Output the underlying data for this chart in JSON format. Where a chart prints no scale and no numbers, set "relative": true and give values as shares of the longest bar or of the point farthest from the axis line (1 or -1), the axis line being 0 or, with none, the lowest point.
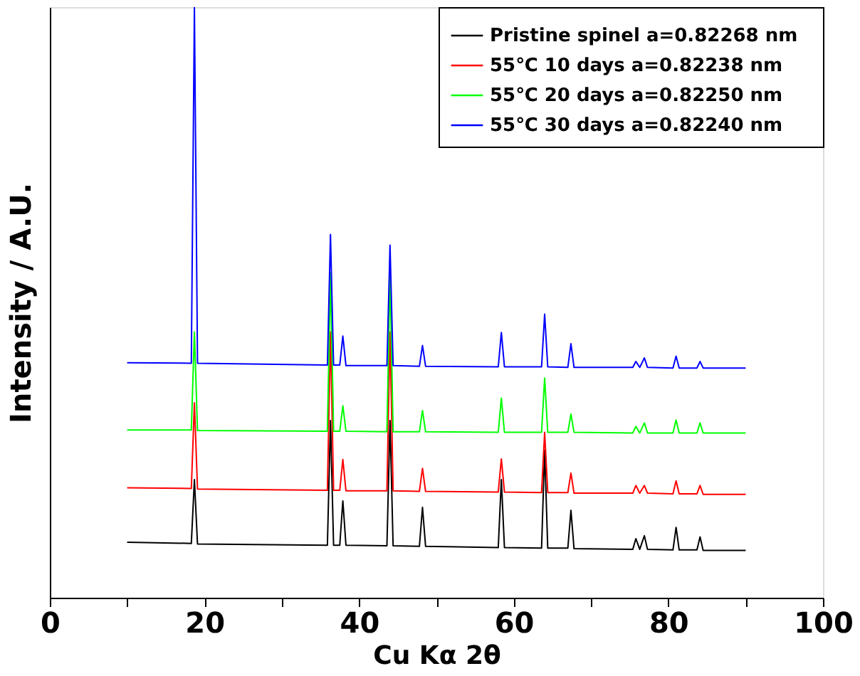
{
  "chart_data": {
    "type": "line",
    "relative": true,
    "xlabel": "Cu Kα  2θ",
    "ylabel": "Intensity / A.U.",
    "xlim": [
      0,
      100
    ],
    "xticks": [
      0,
      {
        "value": 10,
        "label": null
      },
      20,
      {
        "value": 30,
        "label": null
      },
      40,
      {
        "value": 50,
        "label": null
      },
      60,
      {
        "value": 70,
        "label": null
      },
      80,
      {
        "value": 90,
        "label": null
      },
      100
    ],
    "grid": false,
    "legend": "top right",
    "marker": "none",
    "line_style": "solid",
    "x": [
      10,
      18.3,
      18.7,
      19.1,
      35.9,
      36.3,
      36.7,
      37.5,
      37.9,
      38.3,
      43.6,
      44.0,
      44.4,
      47.8,
      48.2,
      48.6,
      58.0,
      58.4,
      58.8,
      63.6,
      64.0,
      64.4,
      67.0,
      67.4,
      67.8,
      75.4,
      75.8,
      76.3,
      76.9,
      77.3,
      80.6,
      81.0,
      81.4,
      83.7,
      84.1,
      84.5,
      90
    ],
    "series": [
      {
        "name": "Pristine spinel   a=0.82268 nm",
        "color": "#000000",
        "values": [
          0.094,
          0.092,
          0.2,
          0.091,
          0.089,
          0.3,
          0.089,
          0.089,
          0.164,
          0.089,
          0.088,
          0.3,
          0.088,
          0.087,
          0.153,
          0.087,
          0.085,
          0.2,
          0.085,
          0.084,
          0.25,
          0.084,
          0.084,
          0.148,
          0.083,
          0.082,
          0.1,
          0.082,
          0.105,
          0.082,
          0.081,
          0.119,
          0.081,
          0.081,
          0.103,
          0.08,
          0.08
        ]
      },
      {
        "name": "55℃   10 days   a=0.82238 nm",
        "color": "#ff0000",
        "values": [
          0.186,
          0.185,
          0.33,
          0.184,
          0.182,
          0.45,
          0.182,
          0.182,
          0.234,
          0.181,
          0.181,
          0.45,
          0.181,
          0.18,
          0.219,
          0.18,
          0.179,
          0.235,
          0.179,
          0.178,
          0.28,
          0.178,
          0.178,
          0.211,
          0.177,
          0.177,
          0.19,
          0.177,
          0.19,
          0.177,
          0.176,
          0.198,
          0.176,
          0.176,
          0.19,
          0.175,
          0.175
        ]
      },
      {
        "name": "55℃   20 days   a=0.82250 nm",
        "color": "#00ff00",
        "values": [
          0.284,
          0.284,
          0.45,
          0.283,
          0.282,
          0.55,
          0.282,
          0.282,
          0.325,
          0.282,
          0.281,
          0.55,
          0.281,
          0.281,
          0.317,
          0.281,
          0.28,
          0.338,
          0.28,
          0.28,
          0.372,
          0.28,
          0.28,
          0.311,
          0.28,
          0.279,
          0.29,
          0.279,
          0.296,
          0.279,
          0.279,
          0.301,
          0.279,
          0.279,
          0.296,
          0.279,
          0.279
        ]
      },
      {
        "name": "55℃   30 days   a=0.82240 nm",
        "color": "#0000ff",
        "values": [
          0.398,
          0.397,
          1.0,
          0.397,
          0.394,
          0.615,
          0.394,
          0.394,
          0.443,
          0.393,
          0.393,
          0.597,
          0.393,
          0.392,
          0.427,
          0.392,
          0.391,
          0.449,
          0.391,
          0.391,
          0.48,
          0.391,
          0.39,
          0.43,
          0.39,
          0.39,
          0.4,
          0.39,
          0.406,
          0.39,
          0.389,
          0.409,
          0.389,
          0.389,
          0.4,
          0.389,
          0.389
        ]
      }
    ]
  }
}
